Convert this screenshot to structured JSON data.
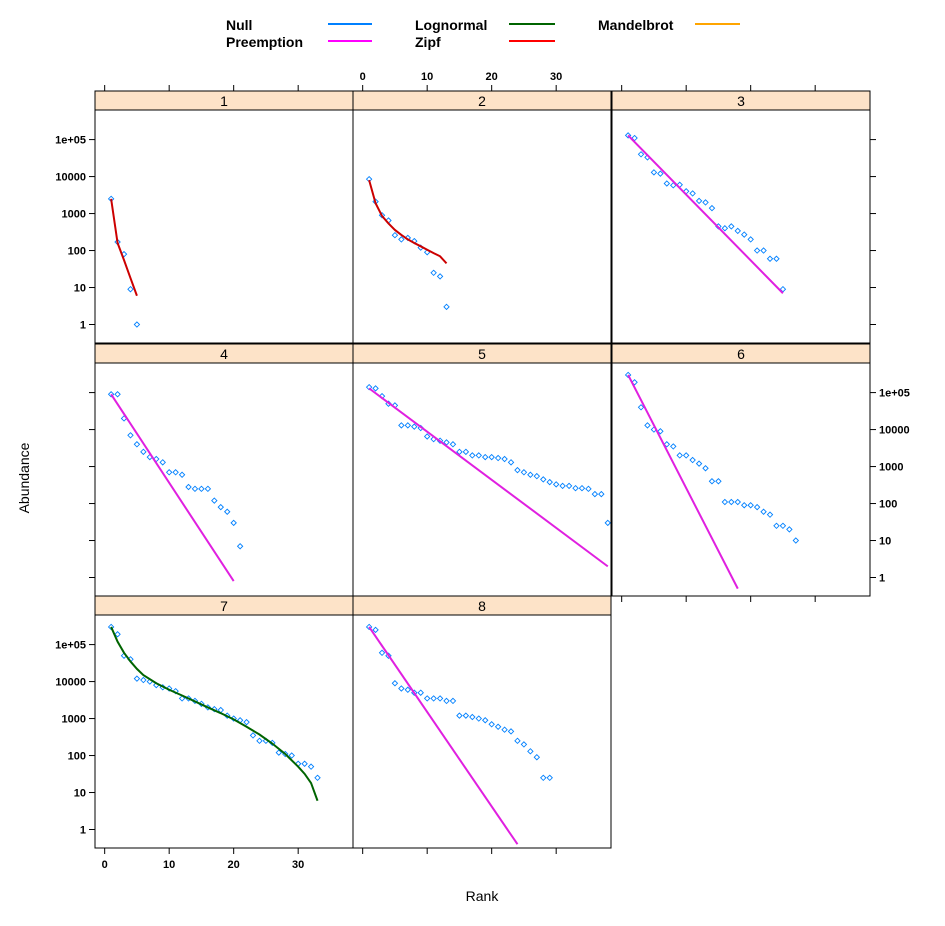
{
  "chart_data": {
    "type": "scatter",
    "xlabel": "Rank",
    "ylabel": "Abundance",
    "x_ticks": [
      0,
      10,
      20,
      30
    ],
    "y_ticks": [
      {
        "value": 1,
        "label": "1"
      },
      {
        "value": 10,
        "label": "10"
      },
      {
        "value": 100,
        "label": "100"
      },
      {
        "value": 1000,
        "label": "1000"
      },
      {
        "value": 10000,
        "label": "10000"
      },
      {
        "value": 100000,
        "label": "1e+05"
      }
    ],
    "xlim": [
      -1.5,
      38.5
    ],
    "ylim_log10": [
      -0.5,
      5.8
    ],
    "y_scale": "log",
    "legend": [
      {
        "name": "Null",
        "color": "#0080ff"
      },
      {
        "name": "Preemption",
        "color": "#ff00ff"
      },
      {
        "name": "Lognormal",
        "color": "#006400"
      },
      {
        "name": "Zipf",
        "color": "#ff0000"
      },
      {
        "name": "Mandelbrot",
        "color": "#ffa500"
      }
    ],
    "point_color": "#0080ff",
    "panels": [
      {
        "label": "1",
        "points": [
          [
            1,
            2500
          ],
          [
            2,
            170
          ],
          [
            3,
            80
          ],
          [
            4,
            9
          ],
          [
            5,
            1
          ]
        ],
        "fit": {
          "model": "Zipf",
          "color": "#cc0000",
          "x": [
            1,
            2,
            3,
            4,
            5
          ],
          "y": [
            2500,
            160,
            55,
            18,
            6
          ]
        }
      },
      {
        "label": "2",
        "points": [
          [
            1,
            8500
          ],
          [
            2,
            2100
          ],
          [
            3,
            900
          ],
          [
            4,
            650
          ],
          [
            5,
            260
          ],
          [
            6,
            200
          ],
          [
            7,
            220
          ],
          [
            8,
            180
          ],
          [
            9,
            120
          ],
          [
            10,
            90
          ],
          [
            11,
            25
          ],
          [
            12,
            20
          ],
          [
            13,
            3
          ]
        ],
        "fit": {
          "model": "Zipf",
          "color": "#cc0000",
          "x": [
            1,
            2,
            3,
            4,
            5,
            6,
            7,
            8,
            9,
            10,
            11,
            12,
            13
          ],
          "y": [
            8000,
            1900,
            860,
            540,
            360,
            265,
            200,
            160,
            130,
            105,
            85,
            70,
            45
          ]
        }
      },
      {
        "label": "3",
        "points": [
          [
            1,
            130000
          ],
          [
            2,
            110000
          ],
          [
            3,
            40000
          ],
          [
            4,
            33000
          ],
          [
            5,
            13000
          ],
          [
            6,
            12000
          ],
          [
            7,
            6500
          ],
          [
            8,
            5800
          ],
          [
            9,
            6000
          ],
          [
            10,
            4000
          ],
          [
            11,
            3500
          ],
          [
            12,
            2200
          ],
          [
            13,
            2000
          ],
          [
            14,
            1400
          ],
          [
            15,
            450
          ],
          [
            16,
            400
          ],
          [
            17,
            450
          ],
          [
            18,
            340
          ],
          [
            19,
            270
          ],
          [
            20,
            200
          ],
          [
            21,
            100
          ],
          [
            22,
            100
          ],
          [
            23,
            60
          ],
          [
            24,
            60
          ],
          [
            25,
            9
          ]
        ],
        "fit": {
          "model": "Preemption",
          "color": "#e020e0",
          "x": [
            1,
            25
          ],
          "y": [
            130000,
            7
          ]
        }
      },
      {
        "label": "4",
        "points": [
          [
            1,
            90000
          ],
          [
            2,
            90000
          ],
          [
            3,
            20000
          ],
          [
            4,
            7000
          ],
          [
            5,
            4000
          ],
          [
            6,
            2500
          ],
          [
            7,
            1800
          ],
          [
            8,
            1600
          ],
          [
            9,
            1300
          ],
          [
            10,
            700
          ],
          [
            11,
            700
          ],
          [
            12,
            600
          ],
          [
            13,
            280
          ],
          [
            14,
            250
          ],
          [
            15,
            250
          ],
          [
            16,
            250
          ],
          [
            17,
            120
          ],
          [
            18,
            80
          ],
          [
            19,
            60
          ],
          [
            20,
            30
          ],
          [
            21,
            7
          ]
        ],
        "fit": {
          "model": "Preemption",
          "color": "#e020e0",
          "x": [
            1,
            20
          ],
          "y": [
            90000,
            0.8
          ]
        }
      },
      {
        "label": "5",
        "points": [
          [
            1,
            140000
          ],
          [
            2,
            130000
          ],
          [
            3,
            80000
          ],
          [
            4,
            50000
          ],
          [
            5,
            45000
          ],
          [
            6,
            13000
          ],
          [
            7,
            13000
          ],
          [
            8,
            12000
          ],
          [
            9,
            11000
          ],
          [
            10,
            6500
          ],
          [
            11,
            5500
          ],
          [
            12,
            5000
          ],
          [
            13,
            4500
          ],
          [
            14,
            4000
          ],
          [
            15,
            2500
          ],
          [
            16,
            2500
          ],
          [
            17,
            2000
          ],
          [
            18,
            2000
          ],
          [
            19,
            1800
          ],
          [
            20,
            1800
          ],
          [
            21,
            1700
          ],
          [
            22,
            1600
          ],
          [
            23,
            1300
          ],
          [
            24,
            800
          ],
          [
            25,
            700
          ],
          [
            26,
            600
          ],
          [
            27,
            550
          ],
          [
            28,
            450
          ],
          [
            29,
            380
          ],
          [
            30,
            330
          ],
          [
            31,
            300
          ],
          [
            32,
            300
          ],
          [
            33,
            260
          ],
          [
            34,
            260
          ],
          [
            35,
            250
          ],
          [
            36,
            180
          ],
          [
            37,
            180
          ],
          [
            38,
            30
          ]
        ],
        "fit": {
          "model": "Preemption",
          "color": "#e020e0",
          "x": [
            1,
            38
          ],
          "y": [
            130000,
            2
          ]
        }
      },
      {
        "label": "6",
        "points": [
          [
            1,
            300000
          ],
          [
            2,
            190000
          ],
          [
            3,
            40000
          ],
          [
            4,
            13000
          ],
          [
            5,
            10000
          ],
          [
            6,
            9000
          ],
          [
            7,
            4000
          ],
          [
            8,
            3500
          ],
          [
            9,
            2000
          ],
          [
            10,
            2000
          ],
          [
            11,
            1500
          ],
          [
            12,
            1200
          ],
          [
            13,
            900
          ],
          [
            14,
            400
          ],
          [
            15,
            400
          ],
          [
            16,
            110
          ],
          [
            17,
            110
          ],
          [
            18,
            110
          ],
          [
            19,
            90
          ],
          [
            20,
            90
          ],
          [
            21,
            80
          ],
          [
            22,
            60
          ],
          [
            23,
            50
          ],
          [
            24,
            25
          ],
          [
            25,
            25
          ],
          [
            26,
            20
          ],
          [
            27,
            10
          ]
        ],
        "fit": {
          "model": "Preemption",
          "color": "#e020e0",
          "x": [
            1,
            18
          ],
          "y": [
            300000,
            0.5
          ]
        }
      },
      {
        "label": "7",
        "points": [
          [
            1,
            300000
          ],
          [
            2,
            190000
          ],
          [
            3,
            50000
          ],
          [
            4,
            40000
          ],
          [
            5,
            12000
          ],
          [
            6,
            11000
          ],
          [
            7,
            10000
          ],
          [
            8,
            8000
          ],
          [
            9,
            7000
          ],
          [
            10,
            6500
          ],
          [
            11,
            5500
          ],
          [
            12,
            3500
          ],
          [
            13,
            3500
          ],
          [
            14,
            3000
          ],
          [
            15,
            2500
          ],
          [
            16,
            2000
          ],
          [
            17,
            1800
          ],
          [
            18,
            1700
          ],
          [
            19,
            1200
          ],
          [
            20,
            1000
          ],
          [
            21,
            900
          ],
          [
            22,
            800
          ],
          [
            23,
            350
          ],
          [
            24,
            250
          ],
          [
            25,
            250
          ],
          [
            26,
            220
          ],
          [
            27,
            120
          ],
          [
            28,
            110
          ],
          [
            29,
            100
          ],
          [
            30,
            60
          ],
          [
            31,
            60
          ],
          [
            32,
            50
          ],
          [
            33,
            25
          ]
        ],
        "fit": {
          "model": "Lognormal",
          "color": "#006400",
          "x": [
            1,
            2,
            3,
            4,
            5,
            6,
            8,
            10,
            12,
            14,
            16,
            18,
            20,
            22,
            24,
            26,
            28,
            30,
            31,
            32,
            33
          ],
          "y": [
            300000,
            120000,
            60000,
            35000,
            22000,
            15000,
            9000,
            6000,
            4200,
            2900,
            2000,
            1400,
            950,
            600,
            370,
            210,
            110,
            50,
            32,
            18,
            6
          ]
        }
      },
      {
        "label": "8",
        "points": [
          [
            1,
            300000
          ],
          [
            2,
            250000
          ],
          [
            3,
            60000
          ],
          [
            4,
            50000
          ],
          [
            5,
            9000
          ],
          [
            6,
            6500
          ],
          [
            7,
            6000
          ],
          [
            8,
            5000
          ],
          [
            9,
            5000
          ],
          [
            10,
            3500
          ],
          [
            11,
            3500
          ],
          [
            12,
            3500
          ],
          [
            13,
            3000
          ],
          [
            14,
            3000
          ],
          [
            15,
            1200
          ],
          [
            16,
            1200
          ],
          [
            17,
            1100
          ],
          [
            18,
            1000
          ],
          [
            19,
            900
          ],
          [
            20,
            700
          ],
          [
            21,
            600
          ],
          [
            22,
            500
          ],
          [
            23,
            450
          ],
          [
            24,
            250
          ],
          [
            25,
            200
          ],
          [
            26,
            130
          ],
          [
            27,
            90
          ],
          [
            28,
            25
          ],
          [
            29,
            25
          ]
        ],
        "fit": {
          "model": "Preemption",
          "color": "#e020e0",
          "x": [
            1,
            24
          ],
          "y": [
            300000,
            0.4
          ]
        }
      }
    ]
  }
}
